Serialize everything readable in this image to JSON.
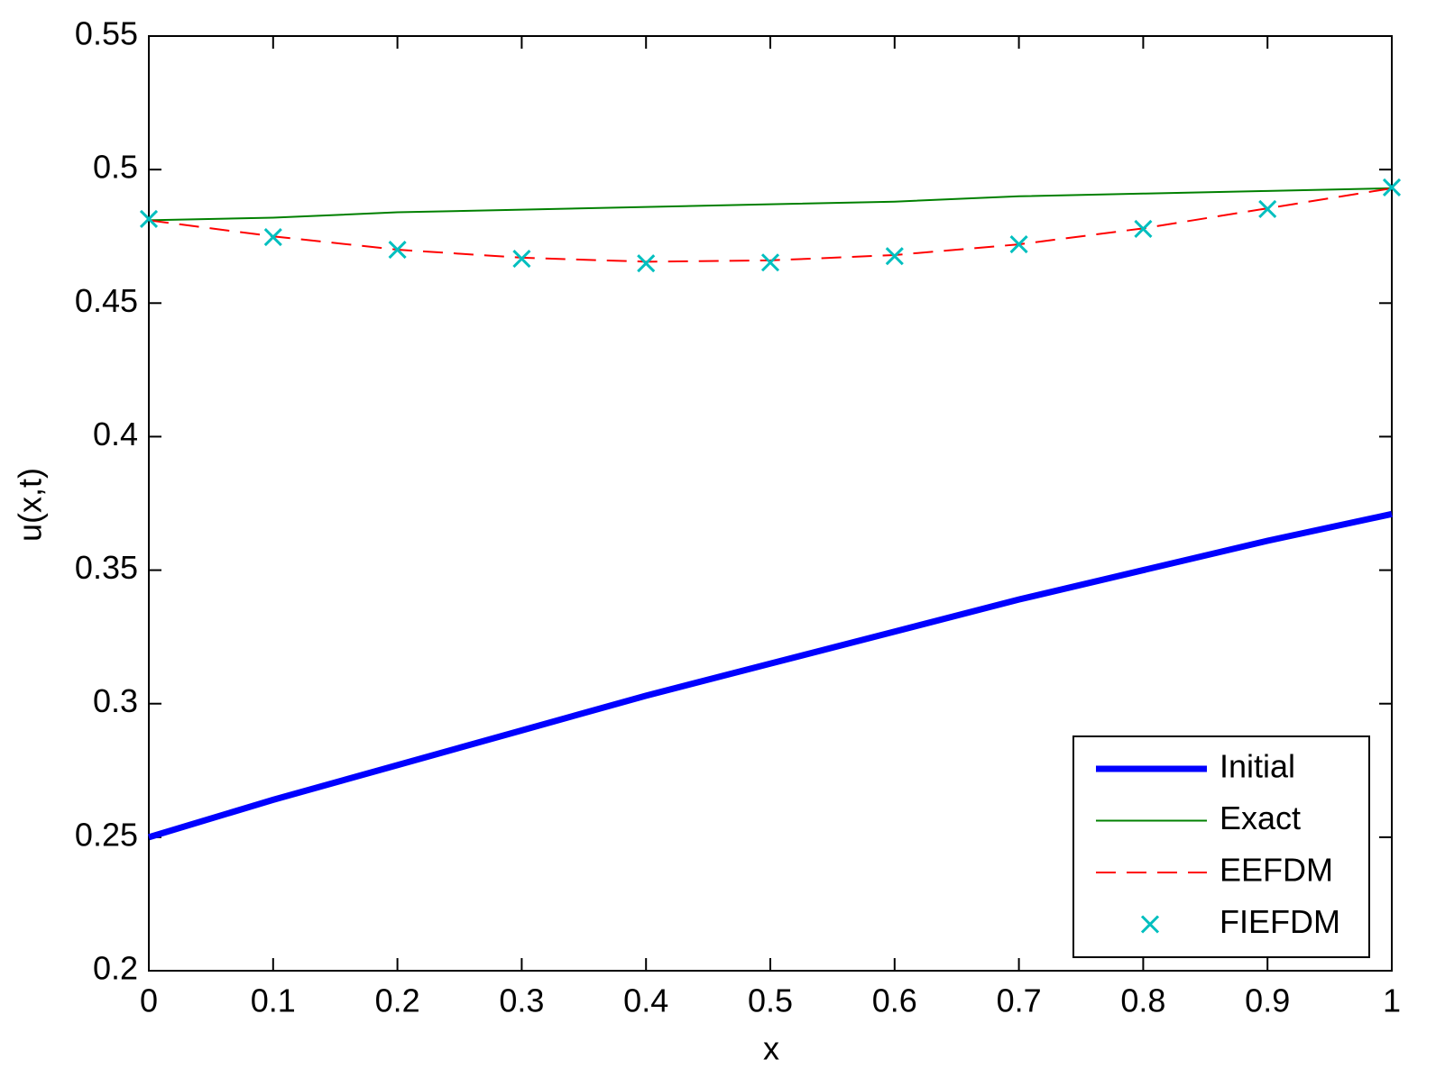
{
  "chart_data": {
    "type": "line",
    "xlabel": "x",
    "ylabel": "u(x,t)",
    "x": [
      0,
      0.1,
      0.2,
      0.3,
      0.4,
      0.5,
      0.6,
      0.7,
      0.8,
      0.9,
      1
    ],
    "xlim": [
      0,
      1
    ],
    "xticks": [
      0,
      0.1,
      0.2,
      0.3,
      0.4,
      0.5,
      0.6,
      0.7,
      0.8,
      0.9,
      1
    ],
    "ylim": [
      0.2,
      0.55
    ],
    "yticks": [
      0.2,
      0.25,
      0.3,
      0.35,
      0.4,
      0.45,
      0.5,
      0.55
    ],
    "legend": "lower right",
    "series": [
      {
        "name": "Initial",
        "color": "#0000ff",
        "linewidth": 7,
        "values": [
          0.25,
          0.264,
          0.277,
          0.29,
          0.303,
          0.315,
          0.327,
          0.339,
          0.35,
          0.361,
          0.371
        ]
      },
      {
        "name": "Exact",
        "color": "#008000",
        "linewidth": 2,
        "values": [
          0.481,
          0.482,
          0.484,
          0.485,
          0.486,
          0.487,
          0.488,
          0.49,
          0.491,
          0.492,
          0.493
        ]
      },
      {
        "name": "EEFDM",
        "color": "#ff0000",
        "linewidth": 2,
        "dash": true,
        "values": [
          0.481,
          0.475,
          0.47,
          0.467,
          0.4655,
          0.466,
          0.468,
          0.472,
          0.478,
          0.4855,
          0.493
        ]
      },
      {
        "name": "FIEFDM",
        "color": "#00bfbf",
        "marker": "x",
        "values": [
          0.4815,
          0.4747,
          0.47,
          0.4666,
          0.4649,
          0.4652,
          0.4676,
          0.472,
          0.4778,
          0.4852,
          0.4933
        ]
      }
    ]
  }
}
